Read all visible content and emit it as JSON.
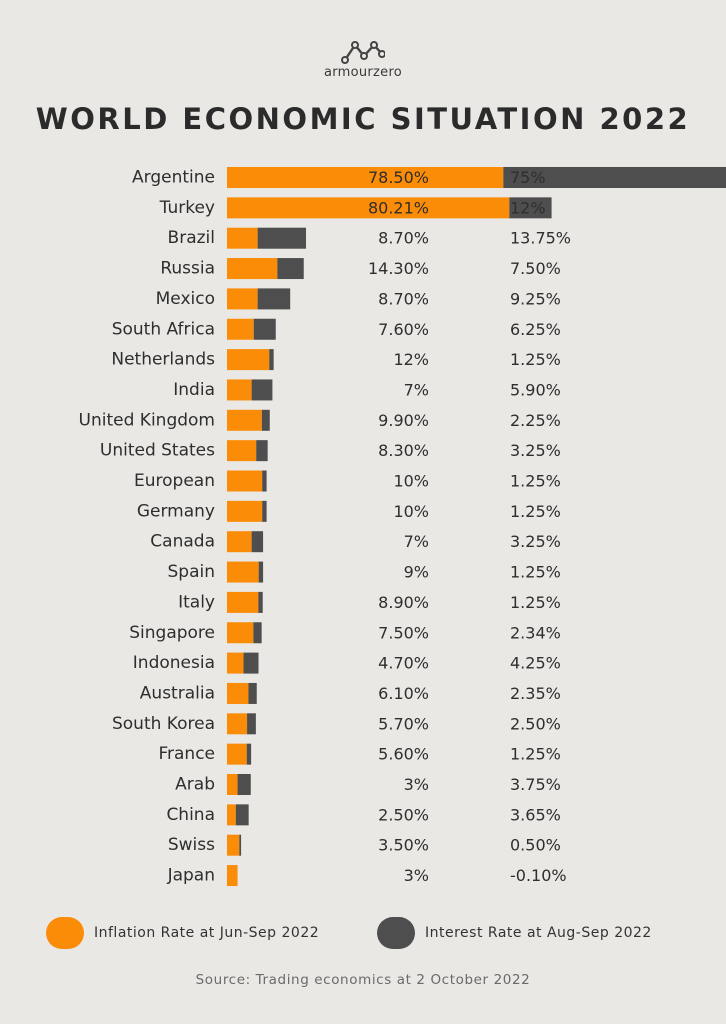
{
  "brand": {
    "name": "armourzero"
  },
  "title": "WORLD ECONOMIC SITUATION 2022",
  "colors": {
    "inflation": "#fb8c08",
    "interest": "#4e4e4e",
    "background": "#e9e8e5"
  },
  "legend": {
    "inflation_label": "Inflation Rate at Jun-Sep 2022",
    "interest_label": "Interest Rate at Aug-Sep 2022"
  },
  "source": "Source: Trading economics at 2 October 2022",
  "chart_data": {
    "type": "bar",
    "orientation": "horizontal",
    "stacked": true,
    "title": "WORLD ECONOMIC SITUATION 2022",
    "categories": [
      "Argentine",
      "Turkey",
      "Brazil",
      "Russia",
      "Mexico",
      "South Africa",
      "Netherlands",
      "India",
      "United Kingdom",
      "United States",
      "European",
      "Germany",
      "Canada",
      "Spain",
      "Italy",
      "Singapore",
      "Indonesia",
      "Australia",
      "South Korea",
      "France",
      "Arab",
      "China",
      "Swiss",
      "Japan"
    ],
    "series": [
      {
        "name": "Inflation Rate at Jun-Sep 2022",
        "values": [
          78.5,
          80.21,
          8.7,
          14.3,
          8.7,
          7.6,
          12,
          7,
          9.9,
          8.3,
          10,
          10,
          7,
          9,
          8.9,
          7.5,
          4.7,
          6.1,
          5.7,
          5.6,
          3,
          2.5,
          3.5,
          3
        ],
        "labels": [
          "78.50%",
          "80.21%",
          "8.70%",
          "14.30%",
          "8.70%",
          "7.60%",
          "12%",
          "7%",
          "9.90%",
          "8.30%",
          "10%",
          "10%",
          "7%",
          "9%",
          "8.90%",
          "7.50%",
          "4.70%",
          "6.10%",
          "5.70%",
          "5.60%",
          "3%",
          "2.50%",
          "3.50%",
          "3%"
        ]
      },
      {
        "name": "Interest Rate at Aug-Sep 2022",
        "values": [
          75,
          12,
          13.75,
          7.5,
          9.25,
          6.25,
          1.25,
          5.9,
          2.25,
          3.25,
          1.25,
          1.25,
          3.25,
          1.25,
          1.25,
          2.34,
          4.25,
          2.35,
          2.5,
          1.25,
          3.75,
          3.65,
          0.5,
          -0.1
        ],
        "labels": [
          "75%",
          "12%",
          "13.75%",
          "7.50%",
          "9.25%",
          "6.25%",
          "1.25%",
          "5.90%",
          "2.25%",
          "3.25%",
          "1.25%",
          "1.25%",
          "3.25%",
          "1.25%",
          "1.25%",
          "2.34%",
          "4.25%",
          "2.35%",
          "2.50%",
          "1.25%",
          "3.75%",
          "3.65%",
          "0.50%",
          "-0.10%"
        ]
      }
    ],
    "legend_position": "bottom",
    "grid": false
  }
}
